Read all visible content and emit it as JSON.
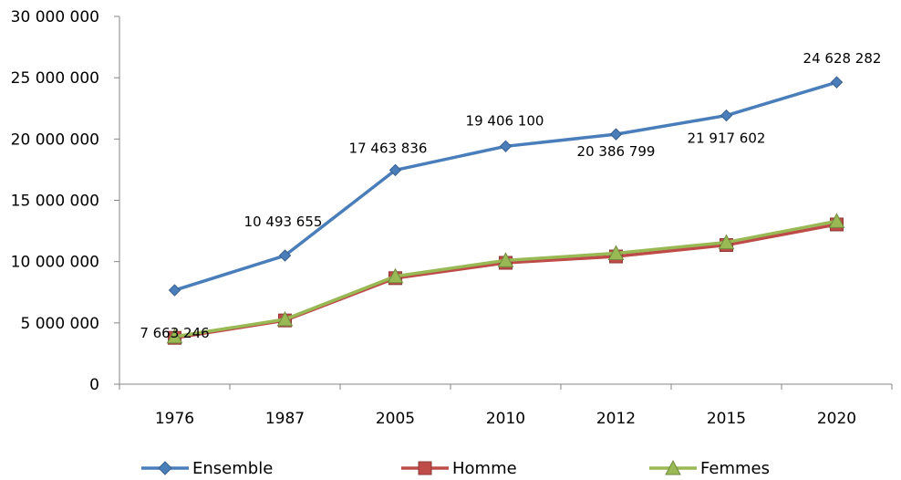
{
  "chart_data": {
    "type": "line",
    "categories": [
      "1976",
      "1987",
      "2005",
      "2010",
      "2012",
      "2015",
      "2020"
    ],
    "ylim": [
      0,
      30000000
    ],
    "yticks": [
      0,
      5000000,
      10000000,
      15000000,
      20000000,
      25000000,
      30000000
    ],
    "ytick_labels": [
      "0",
      "5 000 000",
      "10 000 000",
      "15 000 000",
      "20 000 000",
      "25 000 000",
      "30 000 000"
    ],
    "grid": false,
    "legend_position": "bottom",
    "series": [
      {
        "name": "Ensemble",
        "color": "#4a7ebb",
        "marker": "diamond",
        "values": [
          7663246,
          10493655,
          17463836,
          19406100,
          20386799,
          21917602,
          24628282
        ],
        "data_labels": [
          "7 663 246",
          "10 493 655",
          "17 463 836",
          "19 406 100",
          "20 386 799",
          "21 917 602",
          "24 628 282"
        ]
      },
      {
        "name": "Homme",
        "color": "#be4b48",
        "marker": "square",
        "values": [
          3780000,
          5200000,
          8650000,
          9900000,
          10420000,
          11350000,
          13030000
        ]
      },
      {
        "name": "Femmes",
        "color": "#98b954",
        "marker": "triangle",
        "values": [
          3880000,
          5290000,
          8800000,
          10100000,
          10680000,
          11570000,
          13300000
        ]
      }
    ]
  }
}
